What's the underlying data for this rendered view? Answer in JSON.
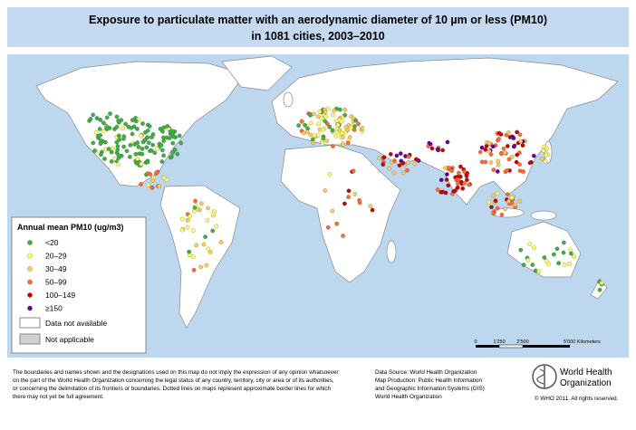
{
  "title": [
    "Exposure to particulate matter with an aerodynamic diameter of 10 µm or less (PM10)",
    "in 1081 cities, 2003–2010"
  ],
  "legend": {
    "title": "Annual mean PM10 (ug/m3)",
    "items": [
      {
        "label": "<20",
        "color": "#3cb043"
      },
      {
        "label": "20–29",
        "color": "#ffff66"
      },
      {
        "label": "30–49",
        "color": "#ffcc55"
      },
      {
        "label": "50–99",
        "color": "#ff6a33"
      },
      {
        "label": "100–149",
        "color": "#cc0000"
      },
      {
        "label": "≥150",
        "color": "#660099"
      }
    ],
    "no_data": "Data not available",
    "not_applicable": "Not applicable"
  },
  "scale_bar": [
    "0",
    "1'250",
    "2'500",
    "5'000 Kilometers"
  ],
  "disclaimer": [
    "The boundaries and names shown and the designations used on this map do not imply the expression of any opinion whatsoever",
    "on the part of the World Health Organization concerning the legal status of any country, territory, city or area or of its authorities,",
    "or concerning the delimitation of its frontiers or boundaries.  Dotted lines on maps represent approximate border lines for which",
    "there may not yet be full agreement."
  ],
  "source": [
    "Data Source: World Health Organization",
    "Map Production: Public Health Information",
    "and Geographic Information Systems (GIS)",
    "World Health Organization"
  ],
  "logo": [
    "World Health",
    "Organization"
  ],
  "copyright": "© WHO 2011. All rights reserved."
}
